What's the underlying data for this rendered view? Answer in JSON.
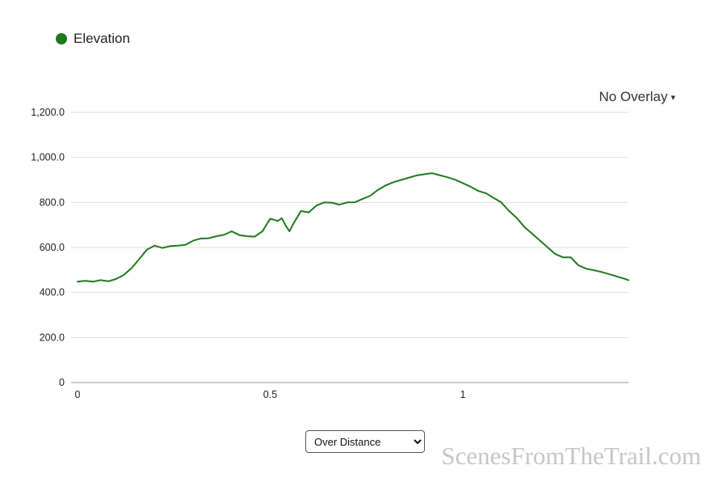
{
  "legend": {
    "label": "Elevation",
    "dot_color": "#1f7a1f"
  },
  "overlay_dropdown": {
    "label": "No Overlay",
    "caret": "▾"
  },
  "controls": {
    "mode_select": {
      "value": "Over Distance"
    }
  },
  "watermark": "ScenesFromTheTrail.com",
  "chart_data": {
    "type": "line",
    "title": "",
    "xlabel": "",
    "ylabel": "",
    "grid": "horizontal",
    "legend_position": "top-left",
    "line_color": "#1f7a1f",
    "grid_color": "#dddddd",
    "axis_color": "#999999",
    "tick_color": "#222222",
    "xlim": [
      0,
      1.43
    ],
    "ylim": [
      0,
      1200
    ],
    "ytick_values": [
      0,
      200,
      400,
      600,
      800,
      1000,
      1200
    ],
    "ytick_labels": [
      "0",
      "200.0",
      "400.0",
      "600.0",
      "800.0",
      "1,000.0",
      "1,200.0"
    ],
    "xtick_values": [
      0,
      0.5,
      1
    ],
    "xtick_labels": [
      "0",
      "0.5",
      "1"
    ],
    "x": [
      0.0,
      0.02,
      0.04,
      0.06,
      0.08,
      0.1,
      0.12,
      0.14,
      0.16,
      0.18,
      0.2,
      0.22,
      0.24,
      0.26,
      0.28,
      0.3,
      0.32,
      0.34,
      0.36,
      0.38,
      0.4,
      0.42,
      0.44,
      0.46,
      0.48,
      0.5,
      0.52,
      0.53,
      0.54,
      0.55,
      0.56,
      0.58,
      0.6,
      0.62,
      0.64,
      0.66,
      0.68,
      0.7,
      0.72,
      0.74,
      0.76,
      0.78,
      0.8,
      0.82,
      0.84,
      0.86,
      0.88,
      0.9,
      0.92,
      0.94,
      0.96,
      0.98,
      1.0,
      1.02,
      1.04,
      1.06,
      1.08,
      1.1,
      1.12,
      1.14,
      1.16,
      1.18,
      1.2,
      1.22,
      1.24,
      1.26,
      1.28,
      1.3,
      1.32,
      1.34,
      1.36,
      1.38,
      1.4,
      1.42,
      1.43
    ],
    "series": [
      {
        "name": "Elevation",
        "values": [
          448,
          452,
          448,
          455,
          450,
          460,
          478,
          508,
          548,
          590,
          608,
          598,
          606,
          608,
          612,
          630,
          640,
          641,
          650,
          656,
          672,
          655,
          650,
          648,
          672,
          728,
          718,
          730,
          698,
          672,
          705,
          762,
          756,
          786,
          800,
          799,
          790,
          800,
          801,
          816,
          830,
          856,
          876,
          890,
          900,
          910,
          920,
          925,
          930,
          921,
          912,
          901,
          886,
          870,
          851,
          841,
          820,
          800,
          762,
          731,
          691,
          661,
          631,
          601,
          571,
          556,
          556,
          521,
          506,
          499,
          491,
          481,
          471,
          461,
          455
        ]
      }
    ]
  }
}
